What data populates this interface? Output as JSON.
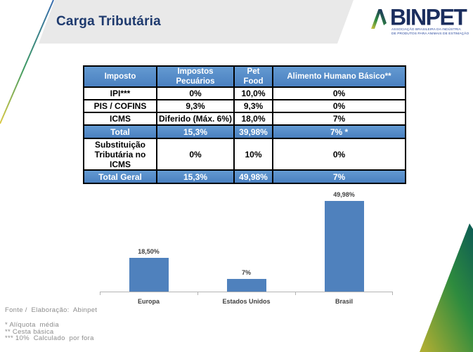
{
  "slide": {
    "title": "Carga Tributária",
    "logo": {
      "name": "ABINPET",
      "wordmark_rest": "BINPET",
      "tagline_line1": "ASSOCIAÇÃO BRASILEIRA DA INDÚSTRIA",
      "tagline_line2": "DE PRODUTOS PARA ANIMAIS DE ESTIMAÇÃO"
    }
  },
  "table": {
    "headers": [
      "Imposto",
      "Impostos Pecuários",
      "Pet Food",
      "Alimento Humano Básico**"
    ],
    "rows": [
      {
        "cells": [
          "IPI***",
          "0%",
          "10,0%",
          "0%"
        ]
      },
      {
        "cells": [
          "PIS / COFINS",
          "9,3%",
          "9,3%",
          "0%"
        ]
      },
      {
        "cells": [
          "ICMS",
          "Diferido (Máx. 6%)",
          "18,0%",
          "7%"
        ]
      },
      {
        "cells": [
          "Total",
          "15,3%",
          "39,98%",
          "7% *"
        ]
      },
      {
        "cells": [
          "Substituição Tributária no ICMS",
          "0%",
          "10%",
          "0%"
        ]
      },
      {
        "cells": [
          "Total Geral",
          "15,3%",
          "49,98%",
          "7%"
        ]
      }
    ]
  },
  "chart_data": {
    "type": "bar",
    "categories": [
      "Europa",
      "Estados Unidos",
      "Brasil"
    ],
    "values": [
      18.5,
      7,
      49.98
    ],
    "value_labels": [
      "18,50%",
      "7%",
      "49,98%"
    ],
    "title": "",
    "xlabel": "",
    "ylabel": "",
    "ylim": [
      0,
      52
    ],
    "grid": false,
    "legend": "none",
    "data_labels": "above-bars",
    "bar_color": "#4f81bd"
  },
  "footer": {
    "source": "Fonte /  Elaboração:  Abinpet",
    "notes": [
      "* Alíquota  média",
      "** Cesta básica",
      "*** 10%  Calculado  por fora"
    ]
  },
  "colors": {
    "accent_blue": "#4e87c7",
    "title_navy": "#1e3a6e",
    "bar_blue": "#4f81bd",
    "band_gray": "#e9e9e9",
    "footer_gray": "#8c8c8c",
    "triangle_teal": "#0d5c55",
    "triangle_olive": "#adad33"
  }
}
